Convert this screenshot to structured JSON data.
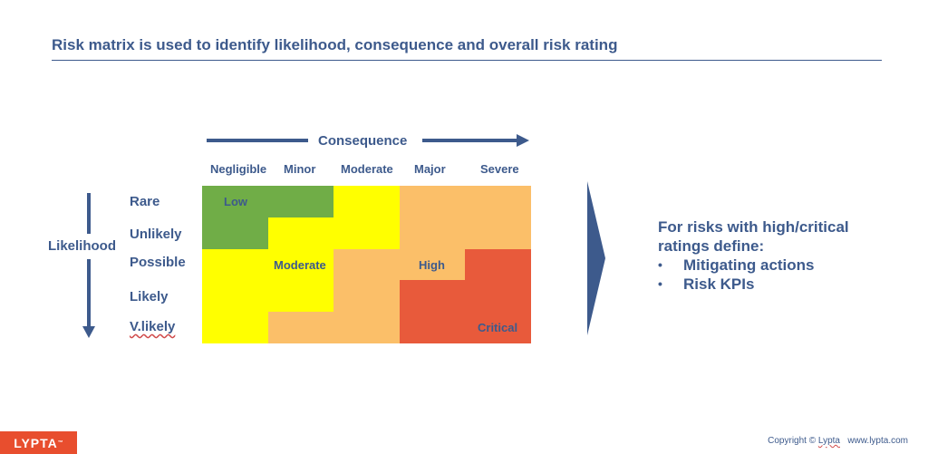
{
  "title": "Risk matrix is used to identify likelihood, consequence and overall risk rating",
  "consequence": {
    "title": "Consequence",
    "columns": [
      "Negligible",
      "Minor",
      "Moderate",
      "Major",
      "Severe"
    ]
  },
  "likelihood": {
    "title": "Likelihood",
    "rows": [
      "Rare",
      "Unlikely",
      "Possible",
      "Likely",
      "V.likely"
    ]
  },
  "matrix": {
    "levels": {
      "low": {
        "label": "Low",
        "color": "#70ad47"
      },
      "moderate": {
        "label": "Moderate",
        "color": "#ffff00"
      },
      "high": {
        "label": "High",
        "color": "#fbbf69"
      },
      "critical": {
        "label": "Critical",
        "color": "#e85a3b"
      }
    },
    "cells": [
      [
        "low",
        "low",
        "moderate",
        "high",
        "high"
      ],
      [
        "low",
        "moderate",
        "moderate",
        "high",
        "high"
      ],
      [
        "moderate",
        "moderate",
        "high",
        "high",
        "critical"
      ],
      [
        "moderate",
        "moderate",
        "high",
        "critical",
        "critical"
      ],
      [
        "moderate",
        "high",
        "high",
        "critical",
        "critical"
      ]
    ]
  },
  "side_text": {
    "heading_line1": "For risks with high/critical",
    "heading_line2": "ratings define:",
    "bullets": [
      "Mitigating actions",
      "Risk KPIs"
    ]
  },
  "footer": {
    "logo": "LYPTA",
    "logo_tm": "™",
    "copyright_prefix": "Copyright ©",
    "copyright_brand": "Lypta",
    "website": "www.lypta.com"
  },
  "colors": {
    "text": "#3d5a8c",
    "arrow": "#3d5a8c",
    "logo_bg": "#e84e2e"
  },
  "icons": {
    "consequence_arrow": "arrow-right-icon",
    "likelihood_arrow": "arrow-down-icon",
    "chevron": "chevron-right-icon"
  }
}
